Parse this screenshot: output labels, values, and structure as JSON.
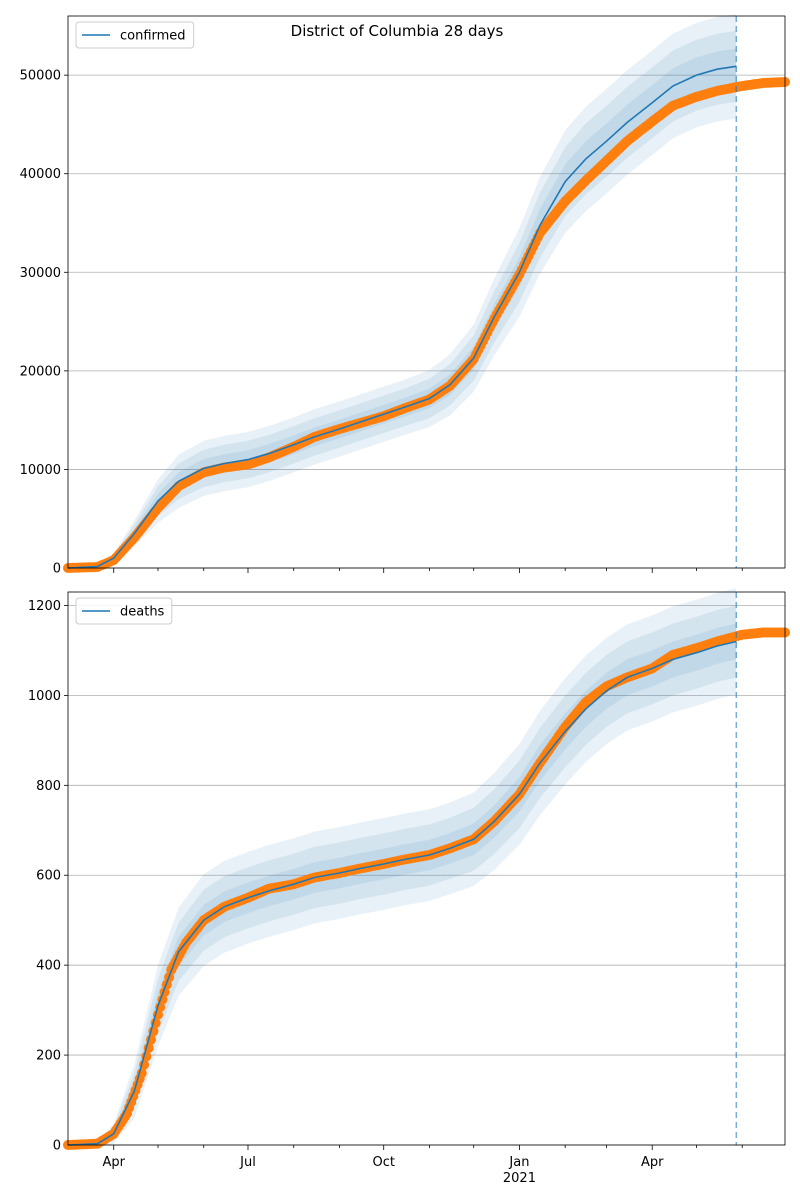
{
  "figure": {
    "title": "District of Columbia 28 days",
    "forecast_start": "2021-05-28"
  },
  "colors": {
    "model": "#1f77b4",
    "observed": "#ff7f0e",
    "band": "#1f77b4",
    "grid": "#b0b0b0"
  },
  "x_axis": {
    "range": [
      "2020-03-01",
      "2021-06-30"
    ],
    "tick_labels": [
      {
        "date": "2020-04-01",
        "label": "Apr"
      },
      {
        "date": "2020-07-01",
        "label": "Jul"
      },
      {
        "date": "2020-10-01",
        "label": "Oct"
      },
      {
        "date": "2021-01-01",
        "label": "Jan"
      },
      {
        "date": "2021-04-01",
        "label": "Apr"
      }
    ],
    "year_label": {
      "date": "2021-01-01",
      "label": "2021"
    },
    "minor_ticks": [
      "2020-05-01",
      "2020-06-01",
      "2020-08-01",
      "2020-09-01",
      "2020-11-01",
      "2020-12-01",
      "2021-02-01",
      "2021-03-01",
      "2021-05-01",
      "2021-06-01"
    ]
  },
  "chart_data": [
    {
      "type": "line",
      "legend": "confirmed",
      "legend_position": "top-left",
      "grid": "y",
      "ylim": [
        0,
        56000
      ],
      "yticks": [
        0,
        10000,
        20000,
        30000,
        40000,
        50000
      ],
      "model": {
        "x": [
          "2020-03-01",
          "2020-03-21",
          "2020-04-01",
          "2020-04-15",
          "2020-05-01",
          "2020-05-15",
          "2020-06-01",
          "2020-06-15",
          "2020-07-01",
          "2020-07-15",
          "2020-08-01",
          "2020-08-15",
          "2020-09-01",
          "2020-09-15",
          "2020-10-01",
          "2020-10-15",
          "2020-11-01",
          "2020-11-15",
          "2020-12-01",
          "2020-12-15",
          "2021-01-01",
          "2021-01-15",
          "2021-02-01",
          "2021-02-15",
          "2021-03-01",
          "2021-03-15",
          "2021-04-01",
          "2021-04-15",
          "2021-05-01",
          "2021-05-15",
          "2021-05-28"
        ],
        "y": [
          0,
          150,
          1000,
          3500,
          6800,
          8800,
          10100,
          10600,
          11000,
          11600,
          12500,
          13300,
          14100,
          14800,
          15600,
          16300,
          17200,
          18600,
          21300,
          25500,
          30000,
          34800,
          39200,
          41500,
          43300,
          45200,
          47200,
          48900,
          50000,
          50600,
          50900
        ],
        "band_half_widths": [
          [
            0,
            40,
            150,
            450,
            750,
            900,
            950,
            950,
            950,
            950,
            950,
            950,
            950,
            950,
            950,
            950,
            1000,
            1050,
            1150,
            1300,
            1500,
            1650,
            1750,
            1800,
            1800,
            1800,
            1800,
            1800,
            1800,
            1800,
            1800
          ],
          [
            0,
            80,
            300,
            900,
            1500,
            1800,
            1900,
            1900,
            1900,
            1900,
            1900,
            1900,
            1900,
            1900,
            1900,
            1900,
            2000,
            2100,
            2300,
            2600,
            3000,
            3300,
            3500,
            3600,
            3600,
            3600,
            3600,
            3600,
            3600,
            3600,
            3600
          ],
          [
            0,
            120,
            450,
            1350,
            2200,
            2700,
            2800,
            2800,
            2800,
            2800,
            2800,
            2800,
            2800,
            2800,
            2800,
            2800,
            2900,
            3100,
            3400,
            3900,
            4500,
            4900,
            5200,
            5300,
            5300,
            5300,
            5300,
            5300,
            5300,
            5300,
            5300
          ]
        ]
      },
      "observed": {
        "x": [
          "2020-03-01",
          "2020-03-21",
          "2020-04-01",
          "2020-04-15",
          "2020-05-01",
          "2020-05-15",
          "2020-06-01",
          "2020-06-15",
          "2020-07-01",
          "2020-07-15",
          "2020-08-01",
          "2020-08-15",
          "2020-09-01",
          "2020-09-15",
          "2020-10-01",
          "2020-10-15",
          "2020-11-01",
          "2020-11-15",
          "2020-12-01",
          "2020-12-15",
          "2021-01-01",
          "2021-01-15",
          "2021-02-01",
          "2021-02-15",
          "2021-03-01",
          "2021-03-15",
          "2021-04-01",
          "2021-04-15",
          "2021-05-01",
          "2021-05-15",
          "2021-06-01",
          "2021-06-15",
          "2021-06-30"
        ],
        "y": [
          0,
          100,
          800,
          3100,
          6100,
          8300,
          9700,
          10200,
          10500,
          11200,
          12300,
          13300,
          14100,
          14700,
          15400,
          16200,
          17100,
          18500,
          21200,
          25300,
          29800,
          34000,
          37200,
          39300,
          41300,
          43300,
          45300,
          46900,
          47800,
          48400,
          48900,
          49200,
          49300
        ]
      }
    },
    {
      "type": "line",
      "legend": "deaths",
      "legend_position": "top-left",
      "grid": "y",
      "ylim": [
        0,
        1230
      ],
      "yticks": [
        0,
        200,
        400,
        600,
        800,
        1000,
        1200
      ],
      "model": {
        "x": [
          "2020-03-01",
          "2020-03-21",
          "2020-04-01",
          "2020-04-15",
          "2020-05-01",
          "2020-05-15",
          "2020-06-01",
          "2020-06-15",
          "2020-07-01",
          "2020-07-15",
          "2020-08-01",
          "2020-08-15",
          "2020-09-01",
          "2020-09-15",
          "2020-10-01",
          "2020-10-15",
          "2020-11-01",
          "2020-11-15",
          "2020-12-01",
          "2020-12-15",
          "2021-01-01",
          "2021-01-15",
          "2021-02-01",
          "2021-02-15",
          "2021-03-01",
          "2021-03-15",
          "2021-04-01",
          "2021-04-15",
          "2021-05-01",
          "2021-05-15",
          "2021-05-28"
        ],
        "y": [
          0,
          3,
          25,
          120,
          310,
          430,
          500,
          530,
          550,
          565,
          580,
          595,
          605,
          615,
          625,
          635,
          645,
          660,
          680,
          720,
          780,
          850,
          920,
          970,
          1010,
          1040,
          1060,
          1080,
          1095,
          1110,
          1120
        ],
        "band_half_widths": [
          [
            0,
            2,
            8,
            20,
            30,
            33,
            34,
            34,
            34,
            34,
            34,
            34,
            34,
            34,
            34,
            34,
            34,
            34,
            35,
            36,
            38,
            40,
            40,
            40,
            40,
            40,
            40,
            40,
            40,
            40,
            40
          ],
          [
            0,
            4,
            15,
            40,
            60,
            65,
            68,
            68,
            68,
            68,
            68,
            68,
            68,
            68,
            68,
            68,
            68,
            68,
            70,
            72,
            75,
            78,
            80,
            80,
            80,
            80,
            80,
            80,
            80,
            80,
            80
          ],
          [
            0,
            6,
            22,
            60,
            90,
            98,
            102,
            102,
            102,
            102,
            102,
            102,
            102,
            102,
            102,
            102,
            102,
            102,
            104,
            108,
            112,
            116,
            118,
            118,
            118,
            118,
            118,
            118,
            118,
            118,
            118
          ]
        ]
      },
      "observed": {
        "x": [
          "2020-03-01",
          "2020-03-21",
          "2020-04-01",
          "2020-04-10",
          "2020-04-20",
          "2020-05-01",
          "2020-05-10",
          "2020-05-20",
          "2020-06-01",
          "2020-06-15",
          "2020-07-01",
          "2020-07-15",
          "2020-08-01",
          "2020-08-15",
          "2020-09-01",
          "2020-09-15",
          "2020-10-01",
          "2020-10-15",
          "2020-11-01",
          "2020-11-15",
          "2020-12-01",
          "2020-12-15",
          "2021-01-01",
          "2021-01-15",
          "2021-02-01",
          "2021-02-15",
          "2021-03-01",
          "2021-03-15",
          "2021-04-01",
          "2021-04-15",
          "2021-05-01",
          "2021-05-15",
          "2021-06-01",
          "2021-06-15",
          "2021-06-30"
        ],
        "y": [
          0,
          3,
          25,
          70,
          160,
          290,
          390,
          450,
          500,
          530,
          550,
          570,
          580,
          595,
          605,
          615,
          625,
          635,
          645,
          660,
          680,
          720,
          780,
          850,
          930,
          985,
          1020,
          1040,
          1060,
          1090,
          1105,
          1120,
          1135,
          1140,
          1140
        ]
      }
    }
  ]
}
